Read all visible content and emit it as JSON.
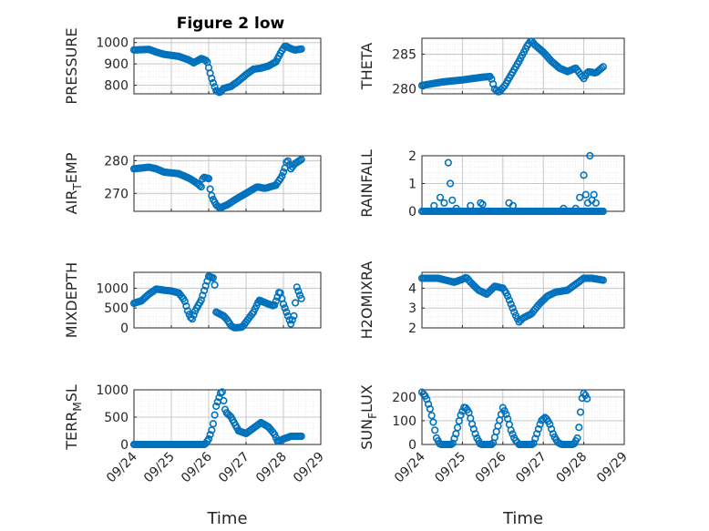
{
  "figure_title": "Figure 2 low",
  "colors": {
    "marker": "#0072BD",
    "axis": "#262626",
    "grid": "#c8c8c8",
    "minorgrid": "#e6e6e6"
  },
  "x_ticks": [
    "09/24",
    "09/25",
    "09/26",
    "09/27",
    "09/28",
    "09/29"
  ],
  "chart_data": [
    {
      "type": "scatter",
      "ylabel": "PRESSURE",
      "ylabel_sub": "",
      "ylabel_tail": "",
      "title": "Figure 2 low",
      "xlabel": "",
      "ylim": [
        760,
        1020
      ],
      "yticks": [
        800,
        900,
        1000
      ],
      "xlim": [
        0,
        5
      ],
      "keypoints": [
        [
          0.0,
          965
        ],
        [
          0.4,
          968
        ],
        [
          0.6,
          955
        ],
        [
          0.8,
          945
        ],
        [
          1.2,
          935
        ],
        [
          1.45,
          920
        ],
        [
          1.6,
          905
        ],
        [
          1.8,
          925
        ],
        [
          1.95,
          915
        ],
        [
          2.05,
          850
        ],
        [
          2.1,
          820
        ],
        [
          2.2,
          775
        ],
        [
          2.3,
          765
        ],
        [
          2.4,
          785
        ],
        [
          2.6,
          795
        ],
        [
          2.8,
          820
        ],
        [
          3.0,
          850
        ],
        [
          3.2,
          875
        ],
        [
          3.4,
          880
        ],
        [
          3.6,
          890
        ],
        [
          3.8,
          910
        ],
        [
          3.95,
          960
        ],
        [
          4.05,
          985
        ],
        [
          4.15,
          975
        ],
        [
          4.3,
          965
        ],
        [
          4.5,
          970
        ]
      ]
    },
    {
      "type": "scatter",
      "ylabel": "THETA",
      "ylabel_sub": "",
      "ylabel_tail": "",
      "title": "",
      "xlabel": "",
      "ylim": [
        279.3,
        287.3
      ],
      "yticks": [
        280,
        285
      ],
      "xlim": [
        0,
        5
      ],
      "keypoints": [
        [
          0.0,
          280.5
        ],
        [
          0.5,
          281.0
        ],
        [
          1.0,
          281.3
        ],
        [
          1.5,
          281.7
        ],
        [
          1.7,
          281.8
        ],
        [
          1.8,
          280.0
        ],
        [
          1.9,
          279.5
        ],
        [
          2.05,
          280.5
        ],
        [
          2.2,
          282.0
        ],
        [
          2.4,
          284.0
        ],
        [
          2.6,
          286.2
        ],
        [
          2.7,
          287.0
        ],
        [
          2.8,
          286.3
        ],
        [
          3.0,
          285.3
        ],
        [
          3.2,
          284.0
        ],
        [
          3.4,
          283.0
        ],
        [
          3.6,
          282.5
        ],
        [
          3.8,
          283.0
        ],
        [
          4.0,
          281.5
        ],
        [
          4.1,
          282.5
        ],
        [
          4.3,
          282.3
        ],
        [
          4.5,
          283.3
        ]
      ]
    },
    {
      "type": "scatter",
      "ylabel": "AIR",
      "ylabel_sub": "T",
      "ylabel_tail": "EMP",
      "title": "",
      "xlabel": "",
      "ylim": [
        264.5,
        281.5
      ],
      "yticks": [
        270,
        280
      ],
      "xlim": [
        0,
        5
      ],
      "keypoints": [
        [
          0.0,
          277.5
        ],
        [
          0.4,
          278.0
        ],
        [
          0.6,
          277.5
        ],
        [
          0.8,
          276.5
        ],
        [
          1.2,
          276.0
        ],
        [
          1.5,
          274.5
        ],
        [
          1.7,
          273.0
        ],
        [
          1.8,
          272.0
        ],
        [
          1.85,
          275.0
        ],
        [
          2.0,
          274.5
        ],
        [
          2.05,
          270.5
        ],
        [
          2.1,
          268.5
        ],
        [
          2.2,
          266.5
        ],
        [
          2.3,
          265.5
        ],
        [
          2.5,
          266.5
        ],
        [
          2.7,
          268.0
        ],
        [
          3.0,
          270.0
        ],
        [
          3.3,
          272.0
        ],
        [
          3.5,
          271.5
        ],
        [
          3.8,
          272.5
        ],
        [
          3.95,
          275.0
        ],
        [
          4.05,
          278.0
        ],
        [
          4.1,
          280.5
        ],
        [
          4.2,
          277.5
        ],
        [
          4.3,
          279.0
        ],
        [
          4.5,
          280.5
        ]
      ]
    },
    {
      "type": "scatter",
      "ylabel": "RAINFALL",
      "ylabel_sub": "",
      "ylabel_tail": "",
      "title": "",
      "xlabel": "",
      "ylim": [
        0,
        2
      ],
      "yticks": [
        0,
        1,
        2
      ],
      "xlim": [
        0,
        5
      ],
      "baseline": 0,
      "start": 0.0,
      "end": 4.5,
      "nonzero": [
        [
          0.3,
          0.2
        ],
        [
          0.45,
          0.5
        ],
        [
          0.55,
          0.3
        ],
        [
          0.65,
          1.75
        ],
        [
          0.7,
          1.0
        ],
        [
          0.75,
          0.4
        ],
        [
          0.85,
          0.1
        ],
        [
          1.2,
          0.2
        ],
        [
          1.45,
          0.3
        ],
        [
          1.5,
          0.25
        ],
        [
          2.15,
          0.3
        ],
        [
          2.25,
          0.2
        ],
        [
          3.5,
          0.1
        ],
        [
          3.8,
          0.1
        ],
        [
          3.9,
          0.5
        ],
        [
          4.0,
          1.3
        ],
        [
          4.05,
          0.6
        ],
        [
          4.1,
          0.3
        ],
        [
          4.15,
          2.0
        ],
        [
          4.2,
          0.4
        ],
        [
          4.25,
          0.6
        ],
        [
          4.3,
          0.3
        ]
      ]
    },
    {
      "type": "scatter",
      "ylabel": "MIXDEPTH",
      "ylabel_sub": "",
      "ylabel_tail": "",
      "title": "",
      "xlabel": "",
      "ylim": [
        0,
        1400
      ],
      "yticks": [
        0,
        500,
        1000
      ],
      "xlim": [
        0,
        5
      ],
      "keypoints": [
        [
          0.0,
          620
        ],
        [
          0.2,
          680
        ],
        [
          0.4,
          850
        ],
        [
          0.6,
          980
        ],
        [
          0.8,
          950
        ],
        [
          1.0,
          930
        ],
        [
          1.2,
          880
        ],
        [
          1.35,
          700
        ],
        [
          1.45,
          400
        ],
        [
          1.55,
          200
        ],
        [
          1.65,
          450
        ],
        [
          1.8,
          700
        ],
        [
          1.9,
          1000
        ],
        [
          2.0,
          1300
        ],
        [
          2.15,
          1250
        ],
        [
          2.2,
          400
        ],
        [
          2.4,
          300
        ],
        [
          2.5,
          200
        ],
        [
          2.6,
          50
        ],
        [
          2.7,
          0
        ],
        [
          2.9,
          20
        ],
        [
          3.0,
          150
        ],
        [
          3.2,
          400
        ],
        [
          3.35,
          700
        ],
        [
          3.6,
          600
        ],
        [
          3.75,
          550
        ],
        [
          3.85,
          800
        ],
        [
          3.9,
          950
        ],
        [
          4.0,
          600
        ],
        [
          4.1,
          350
        ],
        [
          4.2,
          100
        ],
        [
          4.3,
          350
        ],
        [
          4.35,
          1050
        ],
        [
          4.45,
          800
        ],
        [
          4.5,
          700
        ]
      ]
    },
    {
      "type": "scatter",
      "ylabel": "H2OMIXRA",
      "ylabel_sub": "",
      "ylabel_tail": "",
      "title": "",
      "xlabel": "",
      "ylim": [
        2,
        4.8
      ],
      "yticks": [
        2,
        3,
        4
      ],
      "xlim": [
        0,
        5
      ],
      "keypoints": [
        [
          0.0,
          4.5
        ],
        [
          0.4,
          4.5
        ],
        [
          0.6,
          4.4
        ],
        [
          0.8,
          4.3
        ],
        [
          1.0,
          4.45
        ],
        [
          1.1,
          4.55
        ],
        [
          1.2,
          4.3
        ],
        [
          1.4,
          3.9
        ],
        [
          1.6,
          3.7
        ],
        [
          1.8,
          4.1
        ],
        [
          2.0,
          4.0
        ],
        [
          2.1,
          3.7
        ],
        [
          2.2,
          3.2
        ],
        [
          2.3,
          2.7
        ],
        [
          2.4,
          2.3
        ],
        [
          2.5,
          2.5
        ],
        [
          2.7,
          2.7
        ],
        [
          2.9,
          3.2
        ],
        [
          3.1,
          3.6
        ],
        [
          3.3,
          3.8
        ],
        [
          3.6,
          3.9
        ],
        [
          3.8,
          4.2
        ],
        [
          4.0,
          4.5
        ],
        [
          4.2,
          4.5
        ],
        [
          4.5,
          4.4
        ]
      ]
    },
    {
      "type": "scatter",
      "ylabel": "TERR",
      "ylabel_sub": "M",
      "ylabel_tail": "SL",
      "title": "",
      "xlabel": "Time",
      "ylim": [
        0,
        1000
      ],
      "yticks": [
        0,
        500,
        1000
      ],
      "xlim": [
        0,
        5
      ],
      "keypoints": [
        [
          0.0,
          0
        ],
        [
          1.0,
          0
        ],
        [
          1.9,
          0
        ],
        [
          2.0,
          100
        ],
        [
          2.1,
          300
        ],
        [
          2.2,
          700
        ],
        [
          2.3,
          900
        ],
        [
          2.35,
          1000
        ],
        [
          2.45,
          600
        ],
        [
          2.6,
          500
        ],
        [
          2.8,
          250
        ],
        [
          3.0,
          200
        ],
        [
          3.2,
          300
        ],
        [
          3.4,
          400
        ],
        [
          3.6,
          320
        ],
        [
          3.75,
          200
        ],
        [
          3.85,
          50
        ],
        [
          4.0,
          100
        ],
        [
          4.2,
          150
        ],
        [
          4.5,
          150
        ]
      ]
    },
    {
      "type": "scatter",
      "ylabel": "SUN",
      "ylabel_sub": "F",
      "ylabel_tail": "LUX",
      "title": "",
      "xlabel": "Time",
      "ylim": [
        0,
        230
      ],
      "yticks": [
        0,
        100,
        200
      ],
      "xlim": [
        0,
        5
      ],
      "keypoints": [
        [
          0.0,
          220
        ],
        [
          0.1,
          200
        ],
        [
          0.2,
          150
        ],
        [
          0.3,
          80
        ],
        [
          0.35,
          30
        ],
        [
          0.45,
          0
        ],
        [
          0.75,
          0
        ],
        [
          0.85,
          50
        ],
        [
          0.95,
          120
        ],
        [
          1.05,
          160
        ],
        [
          1.15,
          140
        ],
        [
          1.25,
          80
        ],
        [
          1.35,
          30
        ],
        [
          1.45,
          0
        ],
        [
          1.75,
          0
        ],
        [
          1.85,
          60
        ],
        [
          1.95,
          120
        ],
        [
          2.0,
          155
        ],
        [
          2.1,
          120
        ],
        [
          2.2,
          60
        ],
        [
          2.3,
          20
        ],
        [
          2.4,
          0
        ],
        [
          2.75,
          0
        ],
        [
          2.85,
          50
        ],
        [
          2.95,
          100
        ],
        [
          3.05,
          115
        ],
        [
          3.15,
          90
        ],
        [
          3.25,
          40
        ],
        [
          3.35,
          10
        ],
        [
          3.45,
          0
        ],
        [
          3.75,
          0
        ],
        [
          3.85,
          30
        ],
        [
          3.9,
          100
        ],
        [
          3.95,
          190
        ],
        [
          4.0,
          215
        ],
        [
          4.05,
          205
        ],
        [
          4.1,
          185
        ]
      ]
    }
  ]
}
